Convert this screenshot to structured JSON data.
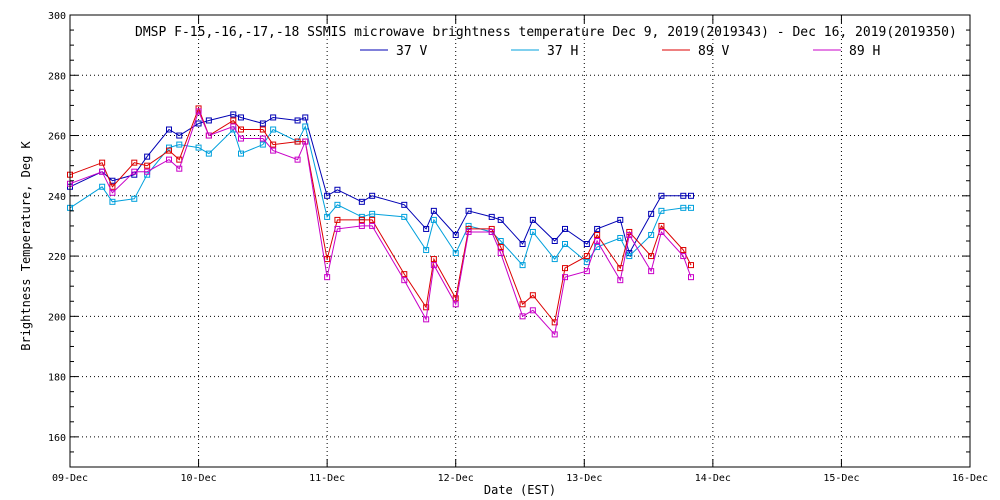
{
  "chart_data": {
    "type": "line",
    "title": "DMSP F-15,-16,-17,-18 SSMIS microwave brightness temperature Dec  9, 2019(2019343) - Dec 16, 2019(2019350)",
    "xlabel": "Date (EST)",
    "ylabel": "Brightness Temperature, Deg K",
    "ylim": [
      150,
      300
    ],
    "yticks": [
      160,
      180,
      200,
      220,
      240,
      260,
      280,
      300
    ],
    "xlim": [
      9,
      16
    ],
    "xticks": [
      {
        "value": 9,
        "label": "09-Dec"
      },
      {
        "value": 10,
        "label": "10-Dec"
      },
      {
        "value": 11,
        "label": "11-Dec"
      },
      {
        "value": 12,
        "label": "12-Dec"
      },
      {
        "value": 13,
        "label": "13-Dec"
      },
      {
        "value": 14,
        "label": "14-Dec"
      },
      {
        "value": 15,
        "label": "15-Dec"
      },
      {
        "value": 16,
        "label": "16-Dec"
      }
    ],
    "grid": true,
    "legend_position": "top-center",
    "series": [
      {
        "name": "37 V",
        "color": "#0000b4",
        "x": [
          9.0,
          9.25,
          9.33,
          9.5,
          9.6,
          9.77,
          9.85,
          10.0,
          10.08,
          10.27,
          10.33,
          10.5,
          10.58,
          10.77,
          10.83,
          11.0,
          11.08,
          11.27,
          11.35,
          11.6,
          11.77,
          11.83,
          12.0,
          12.1,
          12.28,
          12.35,
          12.52,
          12.6,
          12.77,
          12.85,
          13.02,
          13.1,
          13.28,
          13.35,
          13.52,
          13.6,
          13.77,
          13.83
        ],
        "y": [
          243,
          248,
          245,
          247,
          253,
          262,
          260,
          264,
          265,
          267,
          266,
          264,
          266,
          265,
          266,
          240,
          242,
          238,
          240,
          237,
          229,
          235,
          227,
          235,
          233,
          232,
          224,
          232,
          225,
          229,
          224,
          229,
          232,
          221,
          234,
          240,
          240,
          240
        ]
      },
      {
        "name": "37 H",
        "color": "#00a0dc",
        "x": [
          9.0,
          9.25,
          9.33,
          9.5,
          9.6,
          9.77,
          9.85,
          10.0,
          10.08,
          10.27,
          10.33,
          10.5,
          10.58,
          10.77,
          10.83,
          11.0,
          11.08,
          11.27,
          11.35,
          11.6,
          11.77,
          11.83,
          12.0,
          12.1,
          12.28,
          12.35,
          12.52,
          12.6,
          12.77,
          12.85,
          13.02,
          13.1,
          13.28,
          13.35,
          13.52,
          13.6,
          13.77,
          13.83
        ],
        "y": [
          236,
          243,
          238,
          239,
          247,
          256,
          257,
          256,
          254,
          262,
          254,
          257,
          262,
          258,
          263,
          233,
          237,
          233,
          234,
          233,
          222,
          232,
          221,
          230,
          228,
          225,
          217,
          228,
          219,
          224,
          218,
          223,
          226,
          220,
          227,
          235,
          236,
          236
        ]
      },
      {
        "name": "89 V",
        "color": "#dc0000",
        "x": [
          9.0,
          9.25,
          9.33,
          9.5,
          9.6,
          9.77,
          9.85,
          10.0,
          10.08,
          10.27,
          10.33,
          10.5,
          10.58,
          10.77,
          10.83,
          11.0,
          11.08,
          11.27,
          11.35,
          11.6,
          11.77,
          11.83,
          12.0,
          12.1,
          12.28,
          12.35,
          12.52,
          12.6,
          12.77,
          12.85,
          13.02,
          13.1,
          13.28,
          13.35,
          13.52,
          13.6,
          13.77,
          13.83
        ],
        "y": [
          247,
          251,
          243,
          251,
          250,
          255,
          252,
          269,
          260,
          265,
          262,
          262,
          257,
          258,
          258,
          219,
          232,
          232,
          232,
          214,
          203,
          219,
          206,
          229,
          229,
          223,
          204,
          207,
          198,
          216,
          220,
          227,
          216,
          228,
          220,
          230,
          222,
          217
        ]
      },
      {
        "name": "89 H",
        "color": "#c800c8",
        "x": [
          9.0,
          9.25,
          9.33,
          9.5,
          9.6,
          9.77,
          9.85,
          10.0,
          10.08,
          10.27,
          10.33,
          10.5,
          10.58,
          10.77,
          10.83,
          11.0,
          11.08,
          11.27,
          11.35,
          11.6,
          11.77,
          11.83,
          12.0,
          12.1,
          12.28,
          12.35,
          12.52,
          12.6,
          12.77,
          12.85,
          13.02,
          13.1,
          13.28,
          13.35,
          13.52,
          13.6,
          13.77,
          13.83
        ],
        "y": [
          244,
          248,
          241,
          248,
          248,
          252,
          249,
          268,
          260,
          263,
          259,
          259,
          255,
          252,
          258,
          213,
          229,
          230,
          230,
          212,
          199,
          217,
          204,
          228,
          228,
          221,
          200,
          202,
          194,
          213,
          215,
          225,
          212,
          227,
          215,
          228,
          220,
          213
        ]
      }
    ]
  }
}
